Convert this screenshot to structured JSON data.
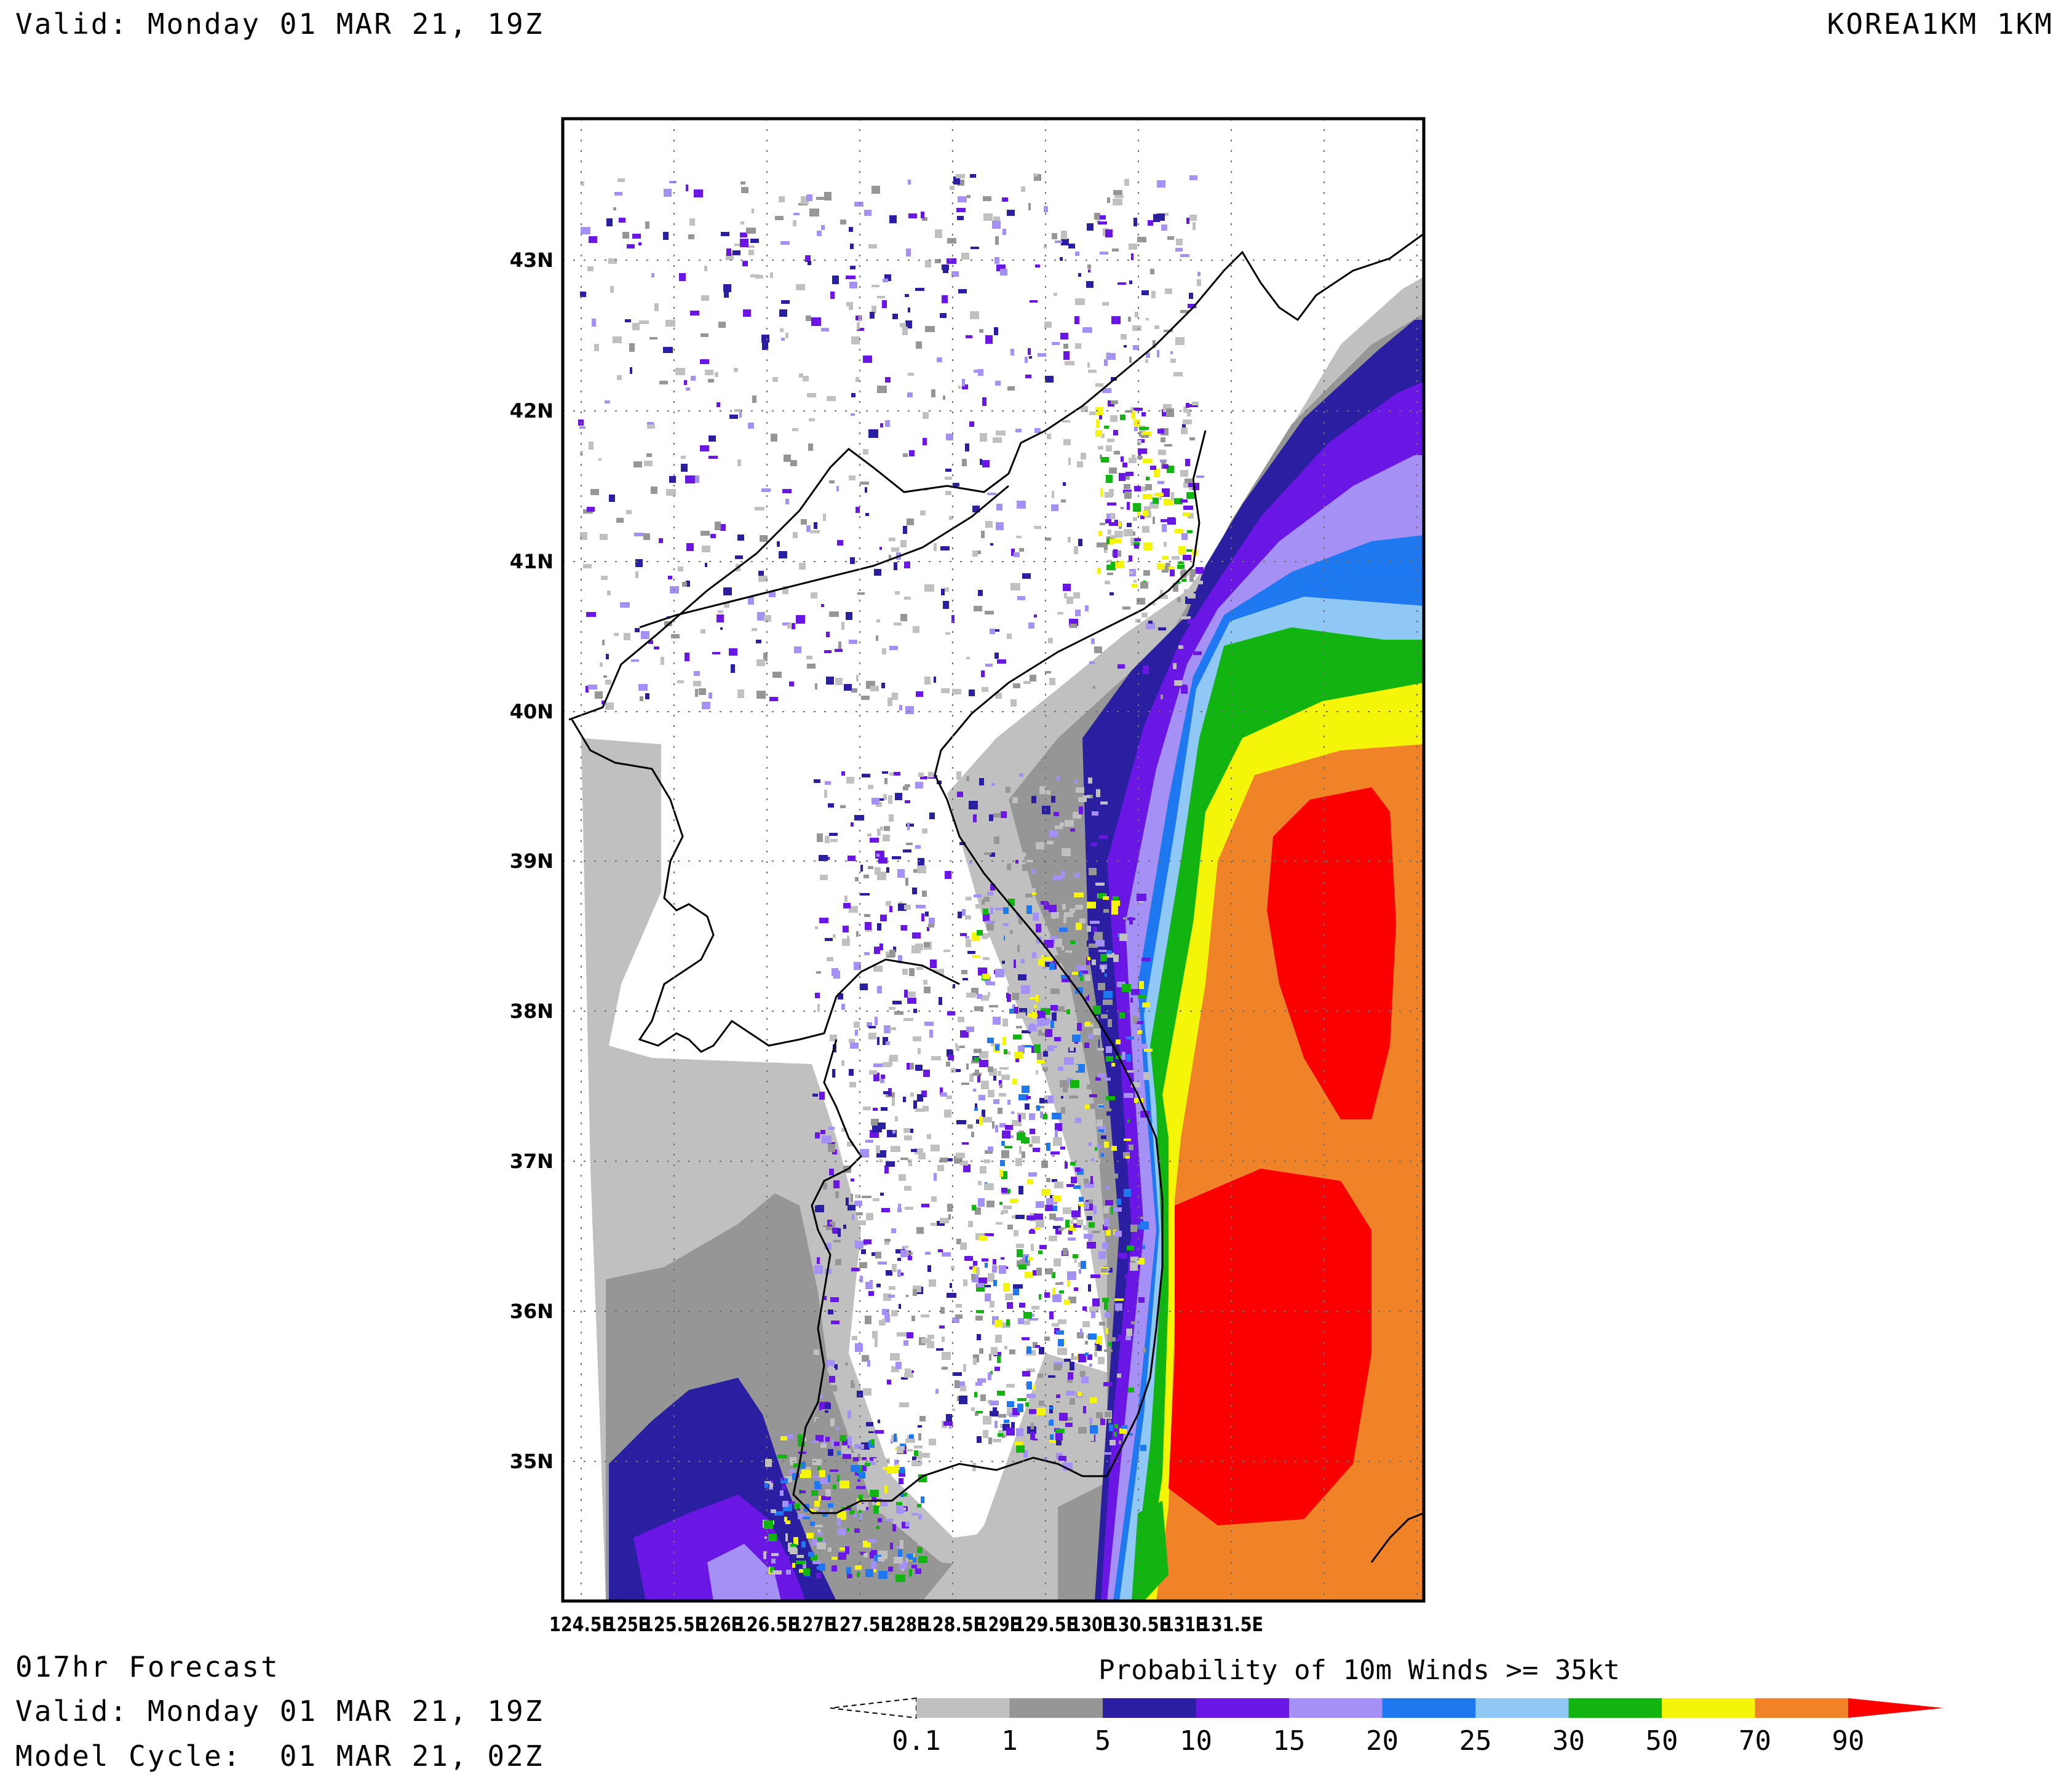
{
  "header": {
    "valid_top": "Valid: Monday 01 MAR 21, 19Z",
    "model_name": "KOREA1KM 1KM"
  },
  "footer": {
    "forecast_hour": "017hr Forecast",
    "valid": "Valid: Monday 01 MAR 21, 19Z",
    "model_cycle": "Model Cycle:  01 MAR 21, 02Z"
  },
  "map": {
    "lat_labels": [
      "43N",
      "42N",
      "41N",
      "40N",
      "39N",
      "38N",
      "37N",
      "36N",
      "35N"
    ],
    "lon_labels": [
      "124.5E",
      "125E",
      "125.5E",
      "126E",
      "126.5E",
      "127E",
      "127.5E",
      "128E",
      "128.5E",
      "129E",
      "129.5E",
      "130E",
      "130.5E",
      "131E",
      "131.5E"
    ]
  },
  "colorbar": {
    "title": "Probability of 10m Winds >= 35kt",
    "bins": [
      {
        "label": "0.1",
        "color": "#c0c0c0"
      },
      {
        "label": "1",
        "color": "#969696"
      },
      {
        "label": "5",
        "color": "#2a1fa0"
      },
      {
        "label": "10",
        "color": "#6a17e6"
      },
      {
        "label": "15",
        "color": "#a590f5"
      },
      {
        "label": "20",
        "color": "#1e78f0"
      },
      {
        "label": "25",
        "color": "#8fc8f4"
      },
      {
        "label": "30",
        "color": "#12b412"
      },
      {
        "label": "50",
        "color": "#f5f50a"
      },
      {
        "label": "70",
        "color": "#f08228"
      },
      {
        "label": "90",
        "color": "#fa0000"
      }
    ]
  }
}
